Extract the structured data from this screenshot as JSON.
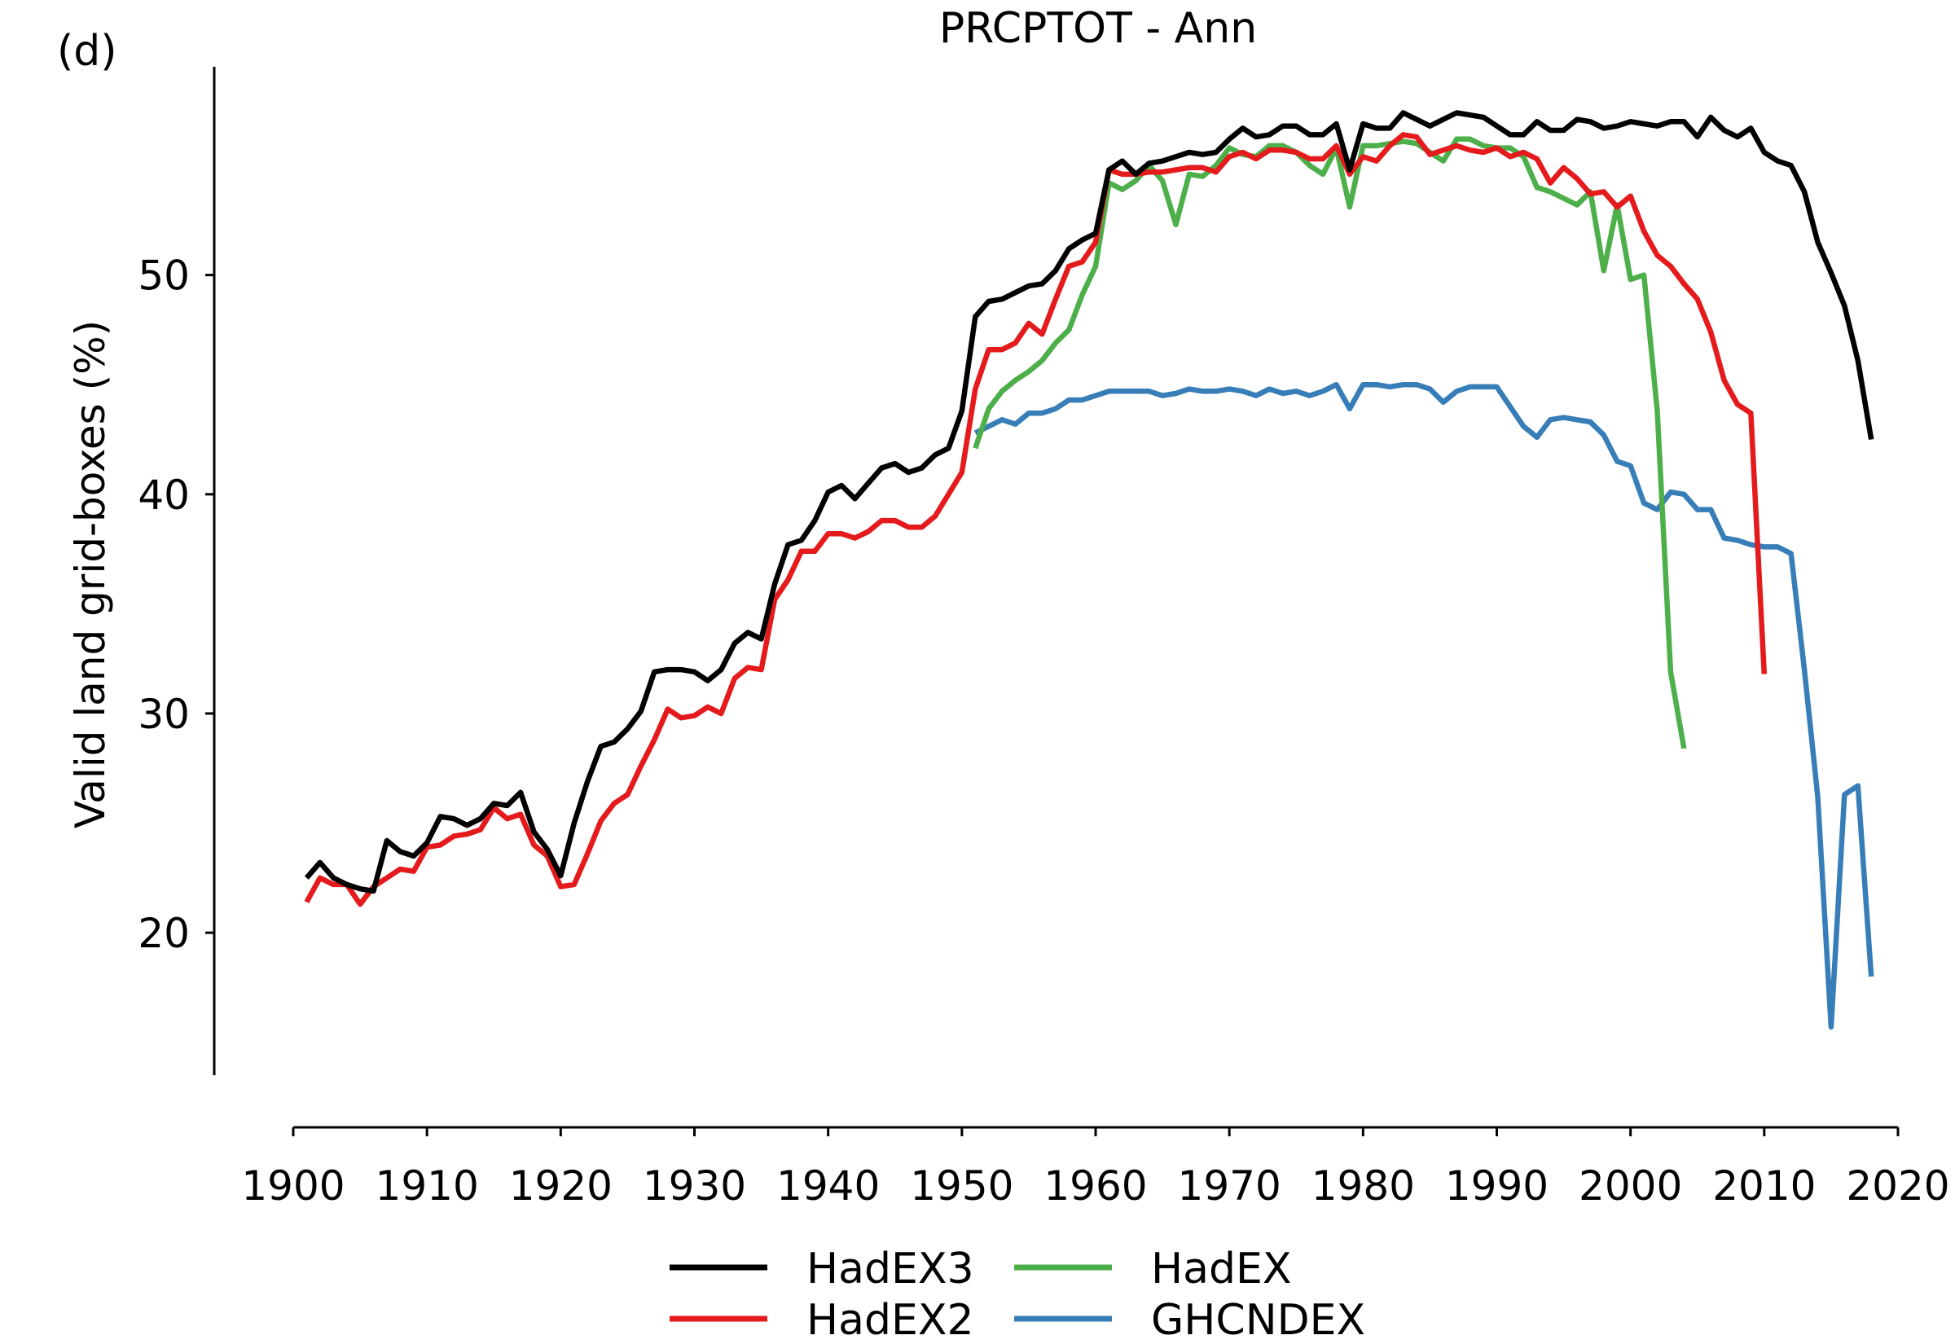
{
  "panel_label": "(d)",
  "chart_data": {
    "type": "line",
    "title": "PRCPTOT - Ann",
    "ylabel": "Valid land grid-boxes (%)",
    "xlabel": "",
    "xlim": [
      1900,
      2020
    ],
    "ylim": [
      13.5,
      59.5
    ],
    "xticks": [
      1900,
      1910,
      1920,
      1930,
      1940,
      1950,
      1960,
      1970,
      1980,
      1990,
      2000,
      2010,
      2020
    ],
    "yticks": [
      20,
      30,
      40,
      50
    ],
    "grid": false,
    "legend": "bottom, below axis, 2 columns",
    "series": [
      {
        "name": "HadEX3",
        "color": "#000000",
        "x_start": 1901,
        "values": [
          22.5,
          23.2,
          22.5,
          22.2,
          22.0,
          21.9,
          24.2,
          23.7,
          23.5,
          24.1,
          25.3,
          25.2,
          24.9,
          25.2,
          25.9,
          25.8,
          26.4,
          24.6,
          23.8,
          22.6,
          25.0,
          26.9,
          28.5,
          28.7,
          29.3,
          30.1,
          31.9,
          32.0,
          32.0,
          31.9,
          31.5,
          32.0,
          33.2,
          33.7,
          33.4,
          35.9,
          37.7,
          37.9,
          38.8,
          40.1,
          40.4,
          39.8,
          40.5,
          41.2,
          41.4,
          41.0,
          41.2,
          41.8,
          42.1,
          43.8,
          48.1,
          48.8,
          48.9,
          49.2,
          49.5,
          49.6,
          50.2,
          51.2,
          51.6,
          51.9,
          54.8,
          55.2,
          54.6,
          55.1,
          55.2,
          55.4,
          55.6,
          55.5,
          55.6,
          56.2,
          56.7,
          56.3,
          56.4,
          56.8,
          56.8,
          56.4,
          56.4,
          56.9,
          54.8,
          56.9,
          56.7,
          56.7,
          57.4,
          57.1,
          56.8,
          57.1,
          57.4,
          57.3,
          57.2,
          56.8,
          56.4,
          56.4,
          57.0,
          56.6,
          56.6,
          57.1,
          57.0,
          56.7,
          56.8,
          57.0,
          56.9,
          56.8,
          57.0,
          57.0,
          56.3,
          57.2,
          56.6,
          56.3,
          56.7,
          55.6,
          55.2,
          55.0,
          53.8,
          51.5,
          50.1,
          48.6,
          46.1,
          42.5
        ]
      },
      {
        "name": "HadEX2",
        "color": "#e41a1c",
        "x_start": 1901,
        "values": [
          21.4,
          22.5,
          22.2,
          22.2,
          21.3,
          22.1,
          22.5,
          22.9,
          22.8,
          23.9,
          24.0,
          24.4,
          24.5,
          24.7,
          25.7,
          25.2,
          25.4,
          24.0,
          23.5,
          22.1,
          22.2,
          23.6,
          25.1,
          25.9,
          26.3,
          27.6,
          28.8,
          30.2,
          29.8,
          29.9,
          30.3,
          30.0,
          31.6,
          32.1,
          32.0,
          35.2,
          36.1,
          37.4,
          37.4,
          38.2,
          38.2,
          38.0,
          38.3,
          38.8,
          38.8,
          38.5,
          38.5,
          39.0,
          40.0,
          41.0,
          44.8,
          46.6,
          46.6,
          46.9,
          47.8,
          47.3,
          48.9,
          50.4,
          50.6,
          51.5,
          54.8,
          54.6,
          54.6,
          54.7,
          54.7,
          54.8,
          54.9,
          54.9,
          54.7,
          55.4,
          55.6,
          55.3,
          55.7,
          55.7,
          55.6,
          55.3,
          55.3,
          55.9,
          54.6,
          55.4,
          55.2,
          55.9,
          56.4,
          56.3,
          55.5,
          55.7,
          55.9,
          55.7,
          55.6,
          55.8,
          55.4,
          55.6,
          55.3,
          54.2,
          54.9,
          54.4,
          53.7,
          53.8,
          53.1,
          53.6,
          52.0,
          50.9,
          50.4,
          49.6,
          48.9,
          47.4,
          45.2,
          44.1,
          43.7,
          31.8
        ]
      },
      {
        "name": "HadEX",
        "color": "#4daf4a",
        "x_start": 1951,
        "values": [
          42.1,
          43.9,
          44.7,
          45.2,
          45.6,
          46.1,
          46.9,
          47.5,
          49.1,
          50.4,
          54.2,
          53.9,
          54.3,
          55.0,
          54.3,
          52.3,
          54.6,
          54.5,
          55.0,
          55.8,
          55.5,
          55.4,
          55.9,
          55.9,
          55.6,
          55.0,
          54.6,
          55.8,
          53.1,
          55.9,
          55.9,
          56.0,
          56.1,
          56.0,
          55.6,
          55.2,
          56.2,
          56.2,
          55.9,
          55.8,
          55.8,
          55.4,
          54.0,
          53.8,
          53.5,
          53.2,
          53.8,
          50.2,
          53.2,
          49.8,
          50.0,
          43.8,
          31.9,
          28.4
        ]
      },
      {
        "name": "GHCNDEX",
        "color": "#377eb8",
        "x_start": 1951,
        "values": [
          42.8,
          43.1,
          43.4,
          43.2,
          43.7,
          43.7,
          43.9,
          44.3,
          44.3,
          44.5,
          44.7,
          44.7,
          44.7,
          44.7,
          44.5,
          44.6,
          44.8,
          44.7,
          44.7,
          44.8,
          44.7,
          44.5,
          44.8,
          44.6,
          44.7,
          44.5,
          44.7,
          45.0,
          43.9,
          45.0,
          45.0,
          44.9,
          45.0,
          45.0,
          44.8,
          44.2,
          44.7,
          44.9,
          44.9,
          44.9,
          44.0,
          43.1,
          42.6,
          43.4,
          43.5,
          43.4,
          43.3,
          42.7,
          41.5,
          41.3,
          39.6,
          39.3,
          40.1,
          40.0,
          39.3,
          39.3,
          38.0,
          37.9,
          37.7,
          37.6,
          37.6,
          37.3,
          32.0,
          26.2,
          15.7,
          26.3,
          26.7,
          18.0
        ]
      }
    ]
  }
}
